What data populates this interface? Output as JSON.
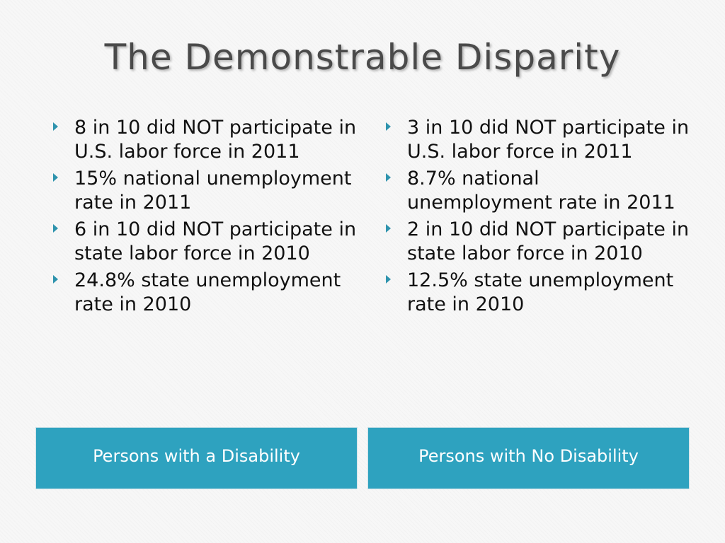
{
  "slide": {
    "title": "The Demonstrable Disparity"
  },
  "left_column": {
    "label": "Persons with a Disability",
    "bullets": [
      "8 in 10 did NOT participate in U.S. labor force in 2011",
      "15% national unemployment rate in 2011",
      "6 in 10 did NOT participate in state labor force in 2010",
      "24.8% state unemployment rate in 2010"
    ]
  },
  "right_column": {
    "label": "Persons with No Disability",
    "bullets": [
      "3 in 10 did NOT participate in U.S. labor force in 2011",
      "8.7% national unemployment rate in 2011",
      "2 in 10 did NOT participate in state labor force in 2010",
      "12.5% state unemployment rate in 2010"
    ]
  },
  "colors": {
    "accent": "#2ea2bf",
    "bullet": "#2e93ad",
    "title": "#4a4a4a"
  }
}
